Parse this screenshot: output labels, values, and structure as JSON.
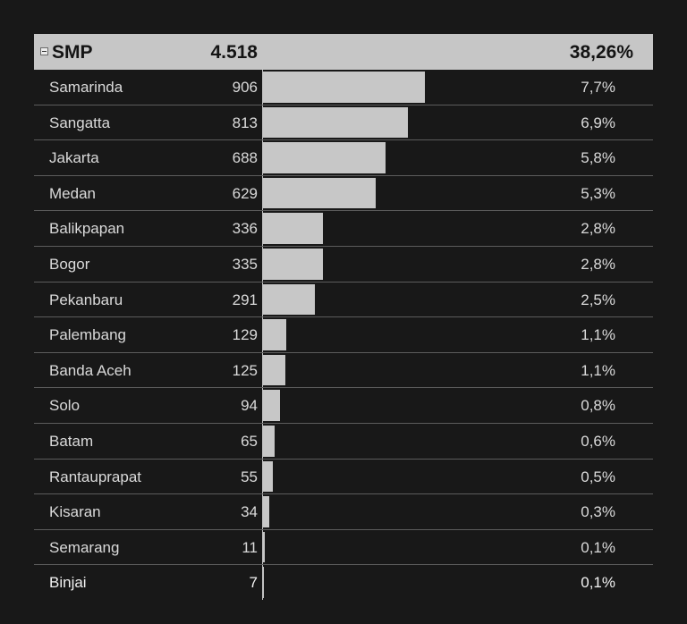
{
  "group": {
    "label": "SMP",
    "total": "4.518",
    "percent": "38,26%"
  },
  "bar_max_value": 906,
  "bar_max_fraction": 0.42,
  "rows": [
    {
      "city": "Samarinda",
      "count": "906",
      "value": 906,
      "percent": "7,7%"
    },
    {
      "city": "Sangatta",
      "count": "813",
      "value": 813,
      "percent": "6,9%"
    },
    {
      "city": "Jakarta",
      "count": "688",
      "value": 688,
      "percent": "5,8%"
    },
    {
      "city": "Medan",
      "count": "629",
      "value": 629,
      "percent": "5,3%"
    },
    {
      "city": "Balikpapan",
      "count": "336",
      "value": 336,
      "percent": "2,8%"
    },
    {
      "city": "Bogor",
      "count": "335",
      "value": 335,
      "percent": "2,8%"
    },
    {
      "city": "Pekanbaru",
      "count": "291",
      "value": 291,
      "percent": "2,5%"
    },
    {
      "city": "Palembang",
      "count": "129",
      "value": 129,
      "percent": "1,1%"
    },
    {
      "city": "Banda Aceh",
      "count": "125",
      "value": 125,
      "percent": "1,1%"
    },
    {
      "city": "Solo",
      "count": "94",
      "value": 94,
      "percent": "0,8%"
    },
    {
      "city": "Batam",
      "count": "65",
      "value": 65,
      "percent": "0,6%"
    },
    {
      "city": "Rantauprapat",
      "count": "55",
      "value": 55,
      "percent": "0,5%"
    },
    {
      "city": "Kisaran",
      "count": "34",
      "value": 34,
      "percent": "0,3%"
    },
    {
      "city": "Semarang",
      "count": "11",
      "value": 11,
      "percent": "0,1%"
    },
    {
      "city": "Binjai",
      "count": "7",
      "value": 7,
      "percent": "0,1%"
    }
  ]
}
